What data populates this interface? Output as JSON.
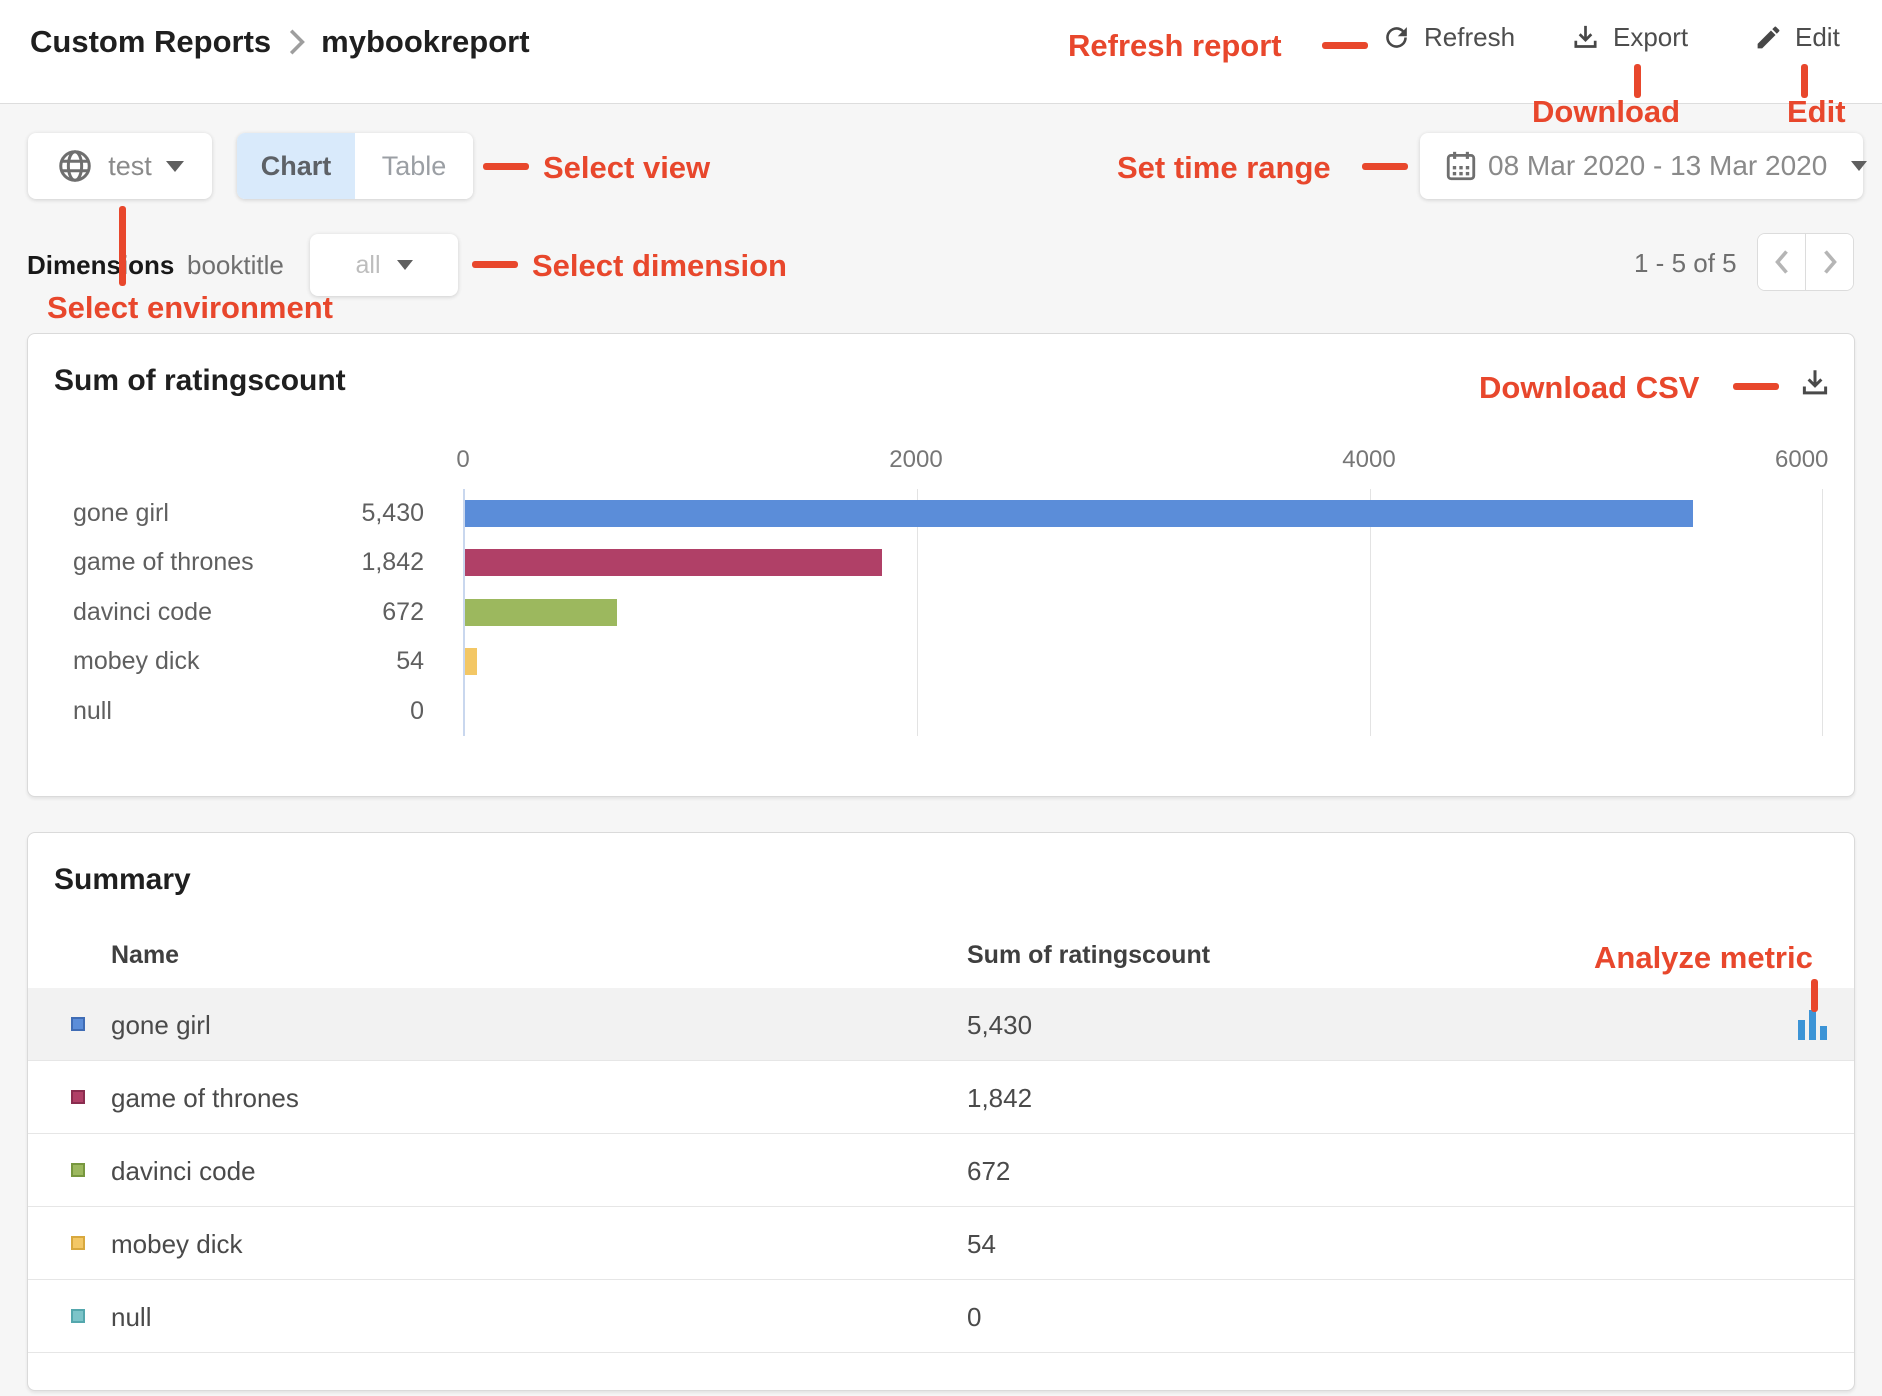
{
  "page": {
    "background": "#f6f6f6",
    "annotation_color": "#e8472c",
    "accent_blue": "#d9eafb"
  },
  "header": {
    "breadcrumb": {
      "root": "Custom Reports",
      "current": "mybookreport"
    },
    "actions": {
      "refresh": "Refresh",
      "export": "Export",
      "edit": "Edit"
    }
  },
  "annotations": {
    "refresh_report": "Refresh report",
    "download": "Download",
    "edit": "Edit",
    "select_view": "Select view",
    "set_time_range": "Set time range",
    "select_dimension": "Select dimension",
    "select_environment": "Select environment",
    "download_csv": "Download CSV",
    "analyze_metric": "Analyze metric"
  },
  "toolbar": {
    "environment": {
      "value": "test"
    },
    "view_toggle": {
      "options": [
        "Chart",
        "Table"
      ],
      "active": "Chart"
    },
    "date_range": "08 Mar 2020 - 13 Mar 2020"
  },
  "dimensions": {
    "label": "Dimensions",
    "name": "booktitle",
    "filter_value": "all"
  },
  "pagination": {
    "text": "1 - 5 of 5"
  },
  "chart_card": {
    "title": "Sum of ratingscount"
  },
  "chart_data": {
    "type": "bar",
    "orientation": "horizontal",
    "title": "Sum of ratingscount",
    "categories": [
      "gone girl",
      "game of thrones",
      "davinci code",
      "mobey dick",
      "null"
    ],
    "values": [
      5430,
      1842,
      672,
      54,
      0
    ],
    "value_labels": [
      "5,430",
      "1,842",
      "672",
      "54",
      "0"
    ],
    "colors": [
      "#5b8dd9",
      "#b04067",
      "#9cb85e",
      "#f3c765",
      "#7cc4c9"
    ],
    "x_ticks": [
      0,
      2000,
      4000,
      6000
    ],
    "xlim": [
      0,
      6000
    ],
    "grid": true,
    "xlabel": "",
    "ylabel": ""
  },
  "summary": {
    "title": "Summary",
    "columns": {
      "name": "Name",
      "value": "Sum of ratingscount"
    },
    "rows": [
      {
        "name": "gone girl",
        "value": "5,430",
        "color": "#5b8dd9",
        "border_color": "#3f6cb5",
        "analyze": true
      },
      {
        "name": "game of thrones",
        "value": "1,842",
        "color": "#b04067",
        "border_color": "#8a2d4f",
        "analyze": false
      },
      {
        "name": "davinci code",
        "value": "672",
        "color": "#9cb85e",
        "border_color": "#77973e",
        "analyze": false
      },
      {
        "name": "mobey dick",
        "value": "54",
        "color": "#f3c765",
        "border_color": "#d8a83e",
        "analyze": false
      },
      {
        "name": "null",
        "value": "0",
        "color": "#7cc4c9",
        "border_color": "#54a7ad",
        "analyze": false
      }
    ]
  }
}
